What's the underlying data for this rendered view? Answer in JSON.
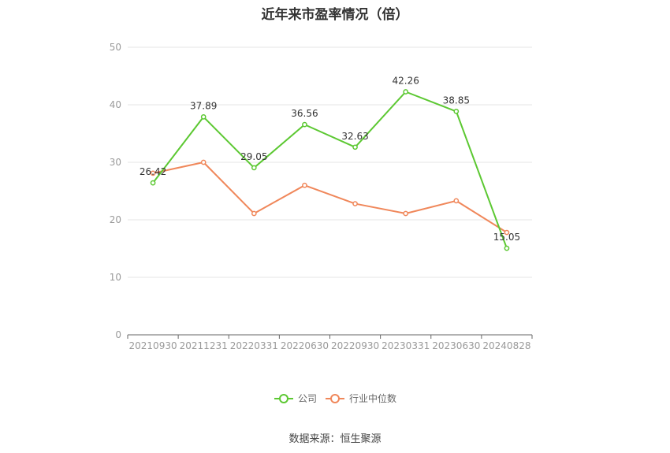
{
  "chart_data": {
    "type": "line",
    "title": "近年来市盈率情况（倍）",
    "categories": [
      "20210930",
      "20211231",
      "20220331",
      "20220630",
      "20220930",
      "20230331",
      "20230630",
      "20240828"
    ],
    "yticks": [
      "0",
      "10",
      "20",
      "30",
      "40",
      "50"
    ],
    "ylim": [
      0,
      50
    ],
    "grid": true,
    "legend_position": "bottom-center",
    "series": [
      {
        "name": "公司",
        "color": "#5cc832",
        "values": [
          26.42,
          37.89,
          29.05,
          36.56,
          32.63,
          42.26,
          38.85,
          15.05
        ],
        "labels": [
          "26.42",
          "37.89",
          "29.05",
          "36.56",
          "32.63",
          "42.26",
          "38.85",
          "15.05"
        ]
      },
      {
        "name": "行业中位数",
        "color": "#f0875a",
        "values": [
          28.1,
          30.0,
          21.1,
          26.0,
          22.8,
          21.1,
          23.3,
          17.8
        ]
      }
    ]
  },
  "footer": {
    "source": "数据来源：恒生聚源"
  }
}
